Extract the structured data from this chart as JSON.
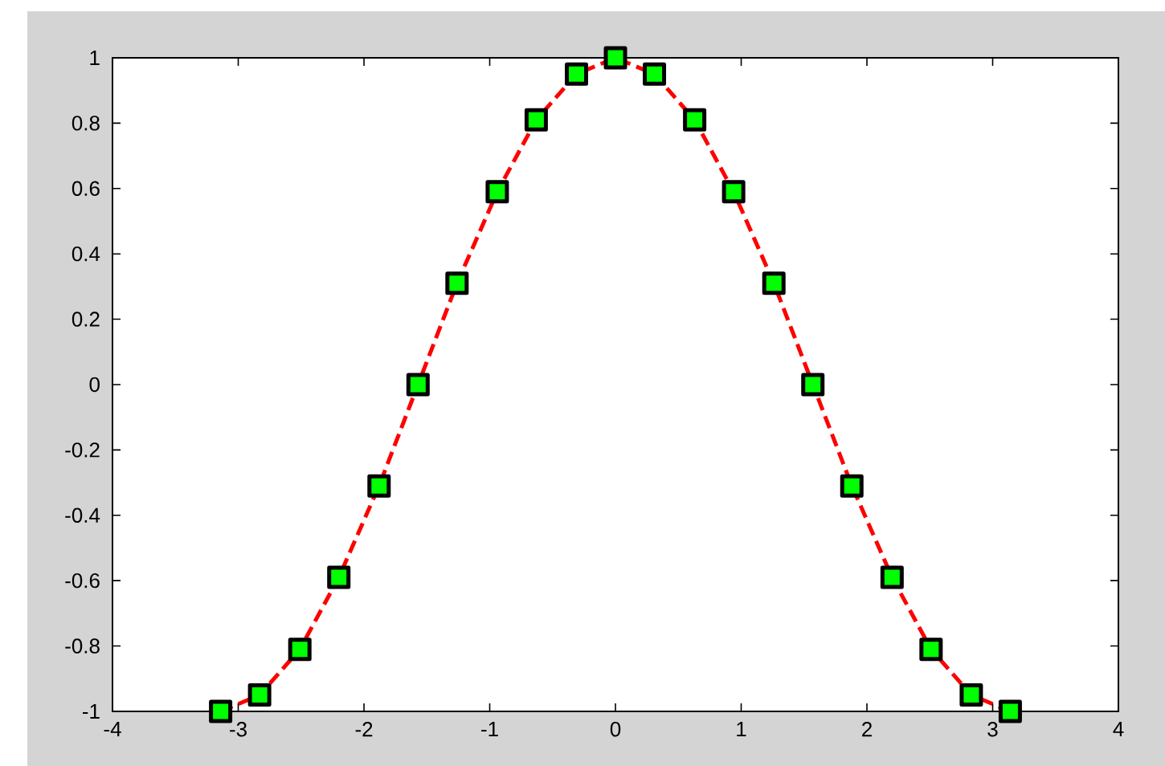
{
  "chart_data": {
    "type": "line",
    "x": [
      -3.14,
      -2.83,
      -2.51,
      -2.2,
      -1.88,
      -1.57,
      -1.26,
      -0.94,
      -0.63,
      -0.31,
      0,
      0.31,
      0.63,
      0.94,
      1.26,
      1.57,
      1.88,
      2.2,
      2.51,
      2.83,
      3.14
    ],
    "values": [
      -1,
      -0.95,
      -0.81,
      -0.59,
      -0.31,
      0,
      0.31,
      0.59,
      0.81,
      0.95,
      1,
      0.95,
      0.81,
      0.59,
      0.31,
      0,
      -0.31,
      -0.59,
      -0.81,
      -0.95,
      -1
    ],
    "color": "#ff0000",
    "marker": "square",
    "line_style": "dashed",
    "xlim": [
      -4,
      4
    ],
    "xticks": [
      -4,
      -3,
      -2,
      -1,
      0,
      1,
      2,
      3,
      4
    ],
    "ylim": [
      -1,
      1
    ],
    "yticks": [
      -1,
      -0.8,
      -0.6,
      -0.4,
      -0.2,
      0,
      0.2,
      0.4,
      0.6,
      0.8,
      1
    ]
  }
}
